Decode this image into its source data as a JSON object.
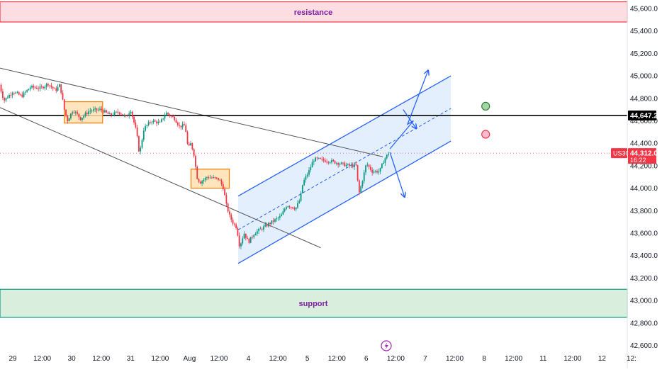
{
  "chart_data": {
    "type": "candlestick",
    "symbol": "US30",
    "y_axis": {
      "ticks": [
        42600,
        42800,
        43000,
        43200,
        43400,
        43600,
        43800,
        44000,
        44200,
        44400,
        44600,
        44800,
        45000,
        45200,
        45400,
        45600
      ],
      "tick_labels": [
        "42,600.0",
        "42,800.0",
        "43,000.0",
        "43,200.0",
        "43,400.0",
        "43,600.0",
        "43,800.0",
        "44,000.0",
        "44,200.0",
        "44,400.0",
        "44,600.0",
        "44,800.0",
        "45,000.0",
        "45,200.0",
        "45,400.0",
        "45,600.0"
      ],
      "range": [
        42540,
        45680
      ]
    },
    "x_axis": {
      "tick_labels": [
        "29",
        "12:00",
        "30",
        "12:00",
        "31",
        "12:00",
        "Aug",
        "12:00",
        "4",
        "12:00",
        "5",
        "12:00",
        "6",
        "12:00",
        "7",
        "12:00",
        "8",
        "12:00",
        "11",
        "12:00",
        "12",
        "12:"
      ],
      "range": [
        0,
        22
      ]
    },
    "current_price": {
      "value": 44312.0,
      "label": "44,312.0",
      "countdown": "16:22",
      "color": "#f23645"
    },
    "horizontal_level": {
      "value": 44647.2,
      "label": "44,647.2"
    },
    "zones": [
      {
        "name": "resistance",
        "label": "resistance",
        "low": 45480,
        "high": 45660,
        "fill": "#fcdde1",
        "border": "#f23645"
      },
      {
        "name": "support",
        "label": "support",
        "low": 42850,
        "high": 43100,
        "fill": "#daeedd",
        "border": "#089981"
      }
    ],
    "trendlines": [
      {
        "name": "upper-wedge",
        "points": [
          [
            -0.45,
            45070
          ],
          [
            12.56,
            44280
          ]
        ]
      },
      {
        "name": "lower-wedge",
        "points": [
          [
            -0.45,
            44720
          ],
          [
            10.45,
            43470
          ]
        ]
      }
    ],
    "channel": {
      "upper": [
        [
          7.65,
          43930
        ],
        [
          14.87,
          45000
        ]
      ],
      "lower": [
        [
          7.65,
          43330
        ],
        [
          14.87,
          44420
        ]
      ],
      "mid": [
        [
          7.65,
          43630
        ],
        [
          14.87,
          44710
        ]
      ],
      "fill": "#dbeafe",
      "line_color": "#2962ff"
    },
    "consolidation_boxes": [
      {
        "x": [
          1.75,
          3.05
        ],
        "y": [
          44580,
          44770
        ]
      },
      {
        "x": [
          6.05,
          7.35
        ],
        "y": [
          44000,
          44170
        ]
      }
    ],
    "arrows": [
      {
        "name": "breakout-up",
        "points": [
          [
            12.8,
            44350
          ],
          [
            13.6,
            44600
          ],
          [
            13.4,
            44570
          ],
          [
            14.1,
            45050
          ]
        ]
      },
      {
        "name": "breakdown",
        "points": [
          [
            12.8,
            44320
          ],
          [
            13.3,
            43920
          ]
        ]
      },
      {
        "name": "wave-tip",
        "points": [
          [
            13.25,
            44700
          ],
          [
            13.7,
            44530
          ]
        ]
      }
    ],
    "markers": [
      {
        "name": "green-circle",
        "x": 16.05,
        "y": 44730,
        "color": "#2e7d32",
        "fill": "#a5d6a7"
      },
      {
        "name": "red-circle",
        "x": 16.05,
        "y": 44480,
        "color": "#f23645",
        "fill": "#f8bbd0"
      }
    ],
    "price_path": [
      [
        -0.45,
        44920
      ],
      [
        -0.3,
        44780
      ],
      [
        0.0,
        44860
      ],
      [
        0.3,
        44820
      ],
      [
        0.6,
        44900
      ],
      [
        0.95,
        44890
      ],
      [
        1.2,
        44930
      ],
      [
        1.45,
        44870
      ],
      [
        1.6,
        44920
      ],
      [
        1.75,
        44700
      ],
      [
        1.85,
        44600
      ],
      [
        2.05,
        44700
      ],
      [
        2.3,
        44620
      ],
      [
        2.6,
        44690
      ],
      [
        3.0,
        44700
      ],
      [
        3.3,
        44650
      ],
      [
        3.6,
        44680
      ],
      [
        3.85,
        44630
      ],
      [
        4.0,
        44700
      ],
      [
        4.2,
        44500
      ],
      [
        4.3,
        44300
      ],
      [
        4.45,
        44530
      ],
      [
        4.7,
        44600
      ],
      [
        5.0,
        44580
      ],
      [
        5.2,
        44670
      ],
      [
        5.5,
        44620
      ],
      [
        5.65,
        44550
      ],
      [
        5.85,
        44560
      ],
      [
        5.95,
        44350
      ],
      [
        6.05,
        44400
      ],
      [
        6.15,
        44300
      ],
      [
        6.25,
        44100
      ],
      [
        6.35,
        44050
      ],
      [
        6.6,
        44100
      ],
      [
        7.0,
        44080
      ],
      [
        7.15,
        44000
      ],
      [
        7.25,
        43850
      ],
      [
        7.35,
        43760
      ],
      [
        7.45,
        43700
      ],
      [
        7.6,
        43650
      ],
      [
        7.7,
        43480
      ],
      [
        7.85,
        43600
      ],
      [
        8.0,
        43520
      ],
      [
        8.2,
        43600
      ],
      [
        8.5,
        43650
      ],
      [
        8.8,
        43700
      ],
      [
        9.1,
        43750
      ],
      [
        9.3,
        43850
      ],
      [
        9.6,
        43820
      ],
      [
        9.75,
        43900
      ],
      [
        9.85,
        44050
      ],
      [
        10.05,
        44150
      ],
      [
        10.2,
        44250
      ],
      [
        10.3,
        44260
      ],
      [
        10.5,
        44250
      ],
      [
        10.8,
        44240
      ],
      [
        11.1,
        44220
      ],
      [
        11.4,
        44200
      ],
      [
        11.65,
        44200
      ],
      [
        11.75,
        43950
      ],
      [
        11.85,
        44050
      ],
      [
        12.0,
        44220
      ],
      [
        12.2,
        44150
      ],
      [
        12.45,
        44150
      ],
      [
        12.6,
        44250
      ],
      [
        12.75,
        44312
      ]
    ]
  }
}
